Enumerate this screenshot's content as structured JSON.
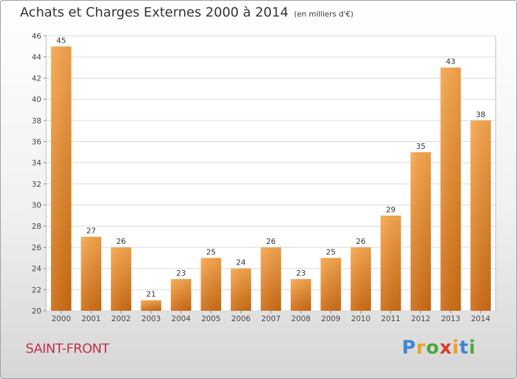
{
  "title": "Achats et Charges Externes 2000 à 2014",
  "subtitle": "(en milliers d'€)",
  "commune": "SAINT-FRONT",
  "logo": {
    "letters": [
      {
        "ch": "P",
        "color": "#3a86d6"
      },
      {
        "ch": "r",
        "color": "#e8a21c"
      },
      {
        "ch": "o",
        "color": "#49a83c"
      },
      {
        "ch": "x",
        "color": "#d93a2a"
      },
      {
        "ch": "i",
        "color": "#e8a21c"
      },
      {
        "ch": "t",
        "color": "#3a86d6"
      },
      {
        "ch": "i",
        "color": "#49a83c"
      }
    ]
  },
  "colors": {
    "bar_light": "#f7a64c",
    "bar_dark": "#cd6c14",
    "grid": "#d8d8d8",
    "axis_text": "#444444"
  },
  "chart_data": {
    "type": "bar",
    "categories": [
      "2000",
      "2001",
      "2002",
      "2003",
      "2004",
      "2005",
      "2006",
      "2007",
      "2008",
      "2009",
      "2010",
      "2011",
      "2012",
      "2013",
      "2014"
    ],
    "values": [
      45,
      27,
      26,
      21,
      23,
      25,
      24,
      26,
      23,
      25,
      26,
      29,
      35,
      43,
      38
    ],
    "ylim": [
      20,
      46
    ],
    "yticks": [
      20,
      22,
      24,
      26,
      28,
      30,
      32,
      34,
      36,
      38,
      40,
      42,
      44,
      46
    ],
    "grid": true,
    "data_labels": true
  }
}
